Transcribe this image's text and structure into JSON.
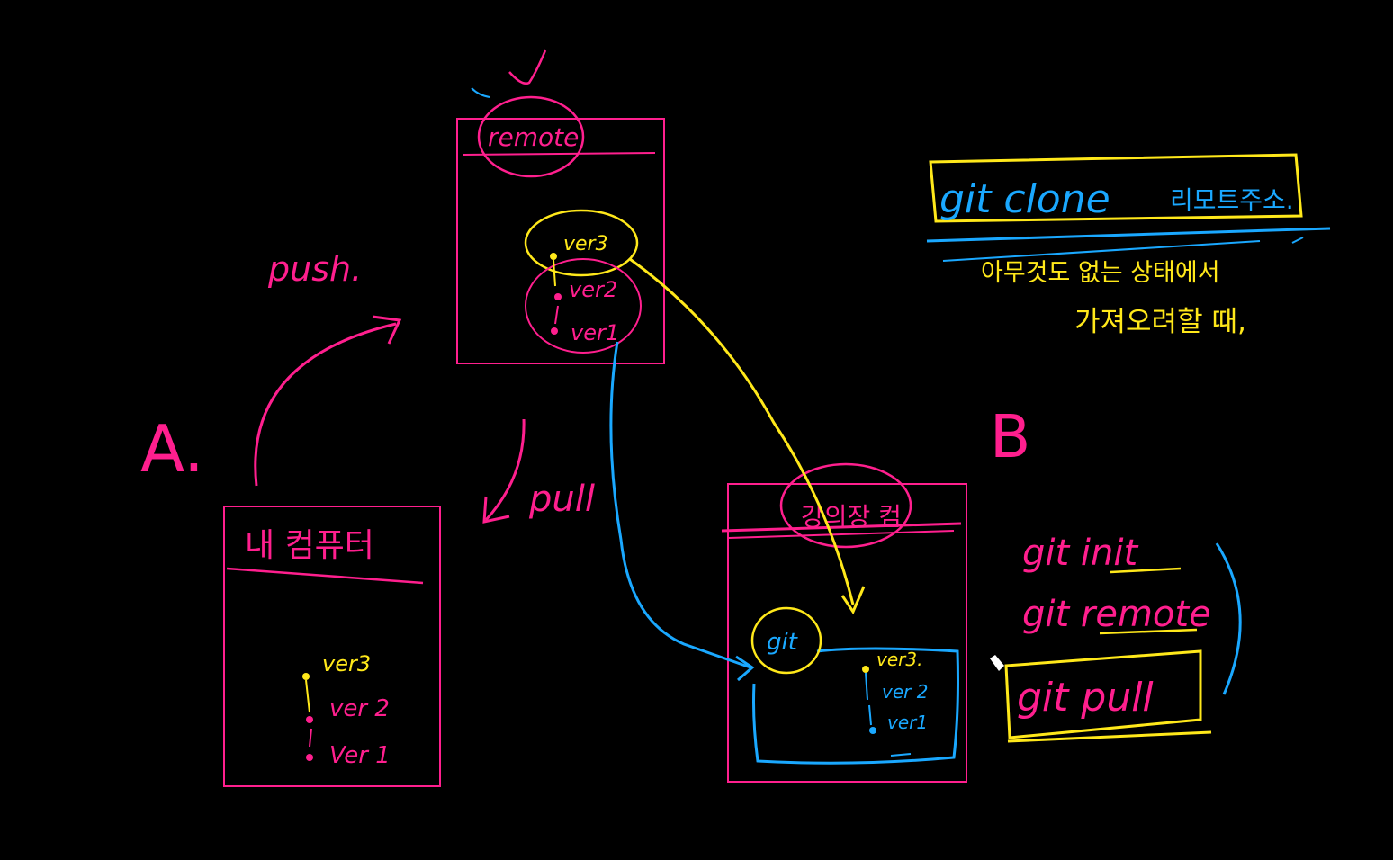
{
  "colors": {
    "background": "#000000",
    "pink": "#ff1f8e",
    "yellow": "#ffe81a",
    "blue": "#1aa8ff"
  },
  "labels": {
    "a": "A.",
    "b": "B",
    "push": "push.",
    "pull": "pull"
  },
  "remote_box": {
    "title": "remote",
    "versions": [
      "ver3",
      "ver2",
      "ver1"
    ]
  },
  "my_computer_box": {
    "title": "내 컴퓨터",
    "versions": [
      "ver3",
      "ver 2",
      "Ver 1"
    ]
  },
  "instructor_box": {
    "title": "강의장 컴",
    "git_label": "git",
    "versions": [
      "ver3.",
      "ver 2",
      "ver1"
    ]
  },
  "clone_note": {
    "command": "git clone",
    "argument": "리모트주소.",
    "description_line1": "아무것도 없는 상태에서",
    "description_line2": "가져오려할 때,"
  },
  "steps": {
    "init": "git init",
    "remote": "git remote",
    "pull": "git pull"
  }
}
